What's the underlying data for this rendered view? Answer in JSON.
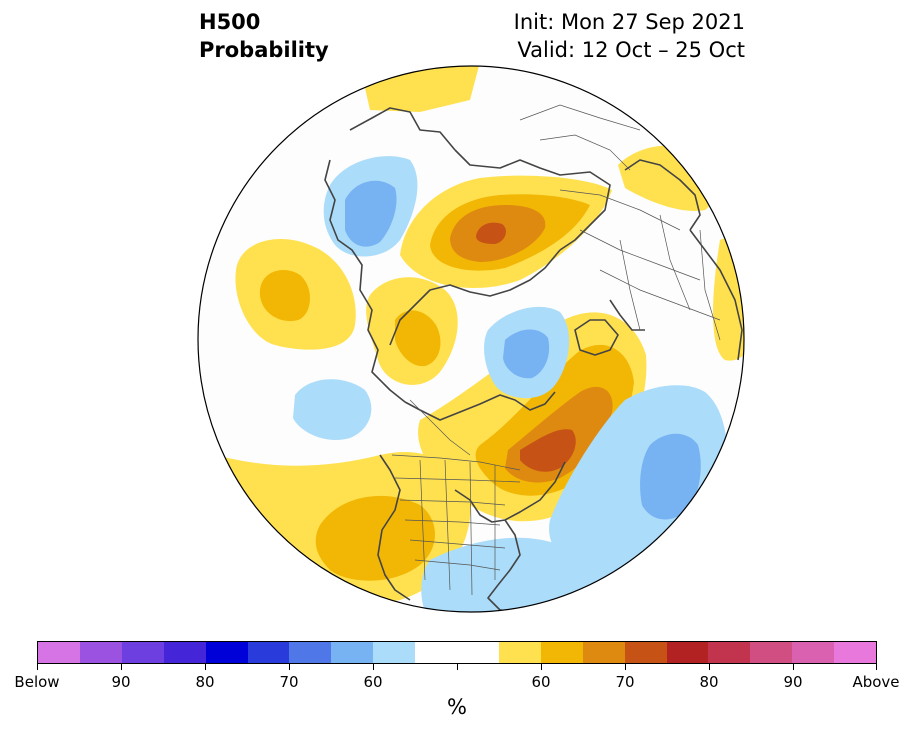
{
  "title": {
    "variable": "H500",
    "subtitle": "Probability",
    "init": "Init: Mon 27 Sep 2021",
    "valid": "Valid: 12 Oct – 25 Oct"
  },
  "colors": {
    "below_90plus": "#d674e6",
    "below_90": "#9b52e0",
    "below_85": "#6d3ee0",
    "below_80": "#4525d8",
    "below_75": "#0000d8",
    "below_70": "#2a3bdc",
    "below_65": "#4f77e8",
    "below_60": "#77b2f2",
    "below_55": "#abdcfa",
    "neutral": "#ffffff",
    "above_55": "#ffe14f",
    "above_60": "#f2b705",
    "above_65": "#de8a10",
    "above_70": "#c65216",
    "above_75": "#b32222",
    "above_80": "#c2344e",
    "above_85": "#d04e82",
    "above_90": "#da60b0",
    "above_90plus": "#e878dc",
    "coast": "#444444",
    "border": "#555555"
  },
  "colorbar": {
    "labels": [
      "Below",
      "90",
      "80",
      "70",
      "60",
      "60",
      "70",
      "80",
      "90",
      "Above"
    ],
    "unit": "%"
  }
}
